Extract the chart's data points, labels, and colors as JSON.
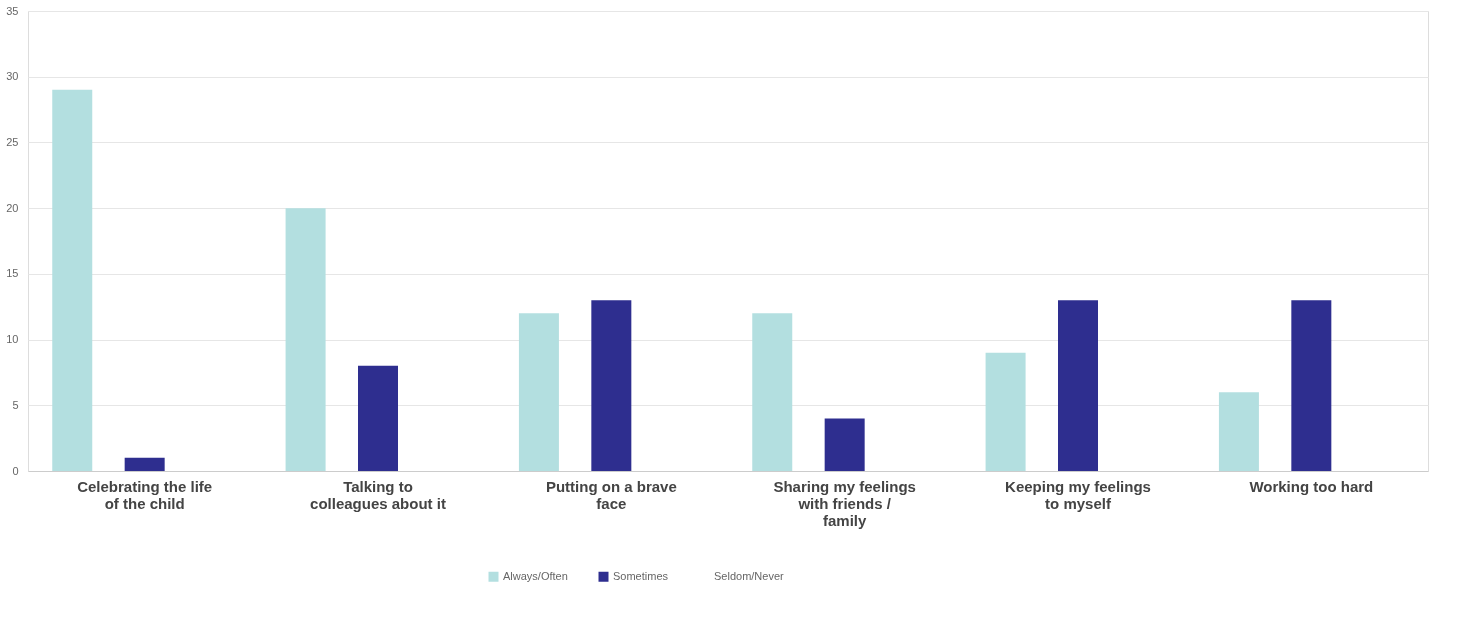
{
  "chart_data": {
    "type": "bar",
    "categories": [
      "Celebrating the life of the child",
      "Talking to colleagues about it",
      "Putting on a brave face",
      "Sharing my feelings with friends / family",
      "Keeping my feelings to myself",
      "Working too hard"
    ],
    "series": [
      {
        "name": "Always/Often",
        "color": "#b3dfe0",
        "values": [
          29,
          20,
          12,
          12,
          9,
          6
        ]
      },
      {
        "name": "Sometimes",
        "color": "#2e2e8f",
        "values": [
          1,
          8,
          13,
          4,
          13,
          13
        ]
      },
      {
        "name": "Seldom/Never",
        "values": [
          null,
          null,
          null,
          null,
          null,
          null
        ]
      }
    ],
    "ylim": [
      0,
      35
    ],
    "yticks": [
      0,
      5,
      10,
      15,
      20,
      25,
      30,
      35
    ],
    "grid": "y",
    "legend": "bottom"
  }
}
